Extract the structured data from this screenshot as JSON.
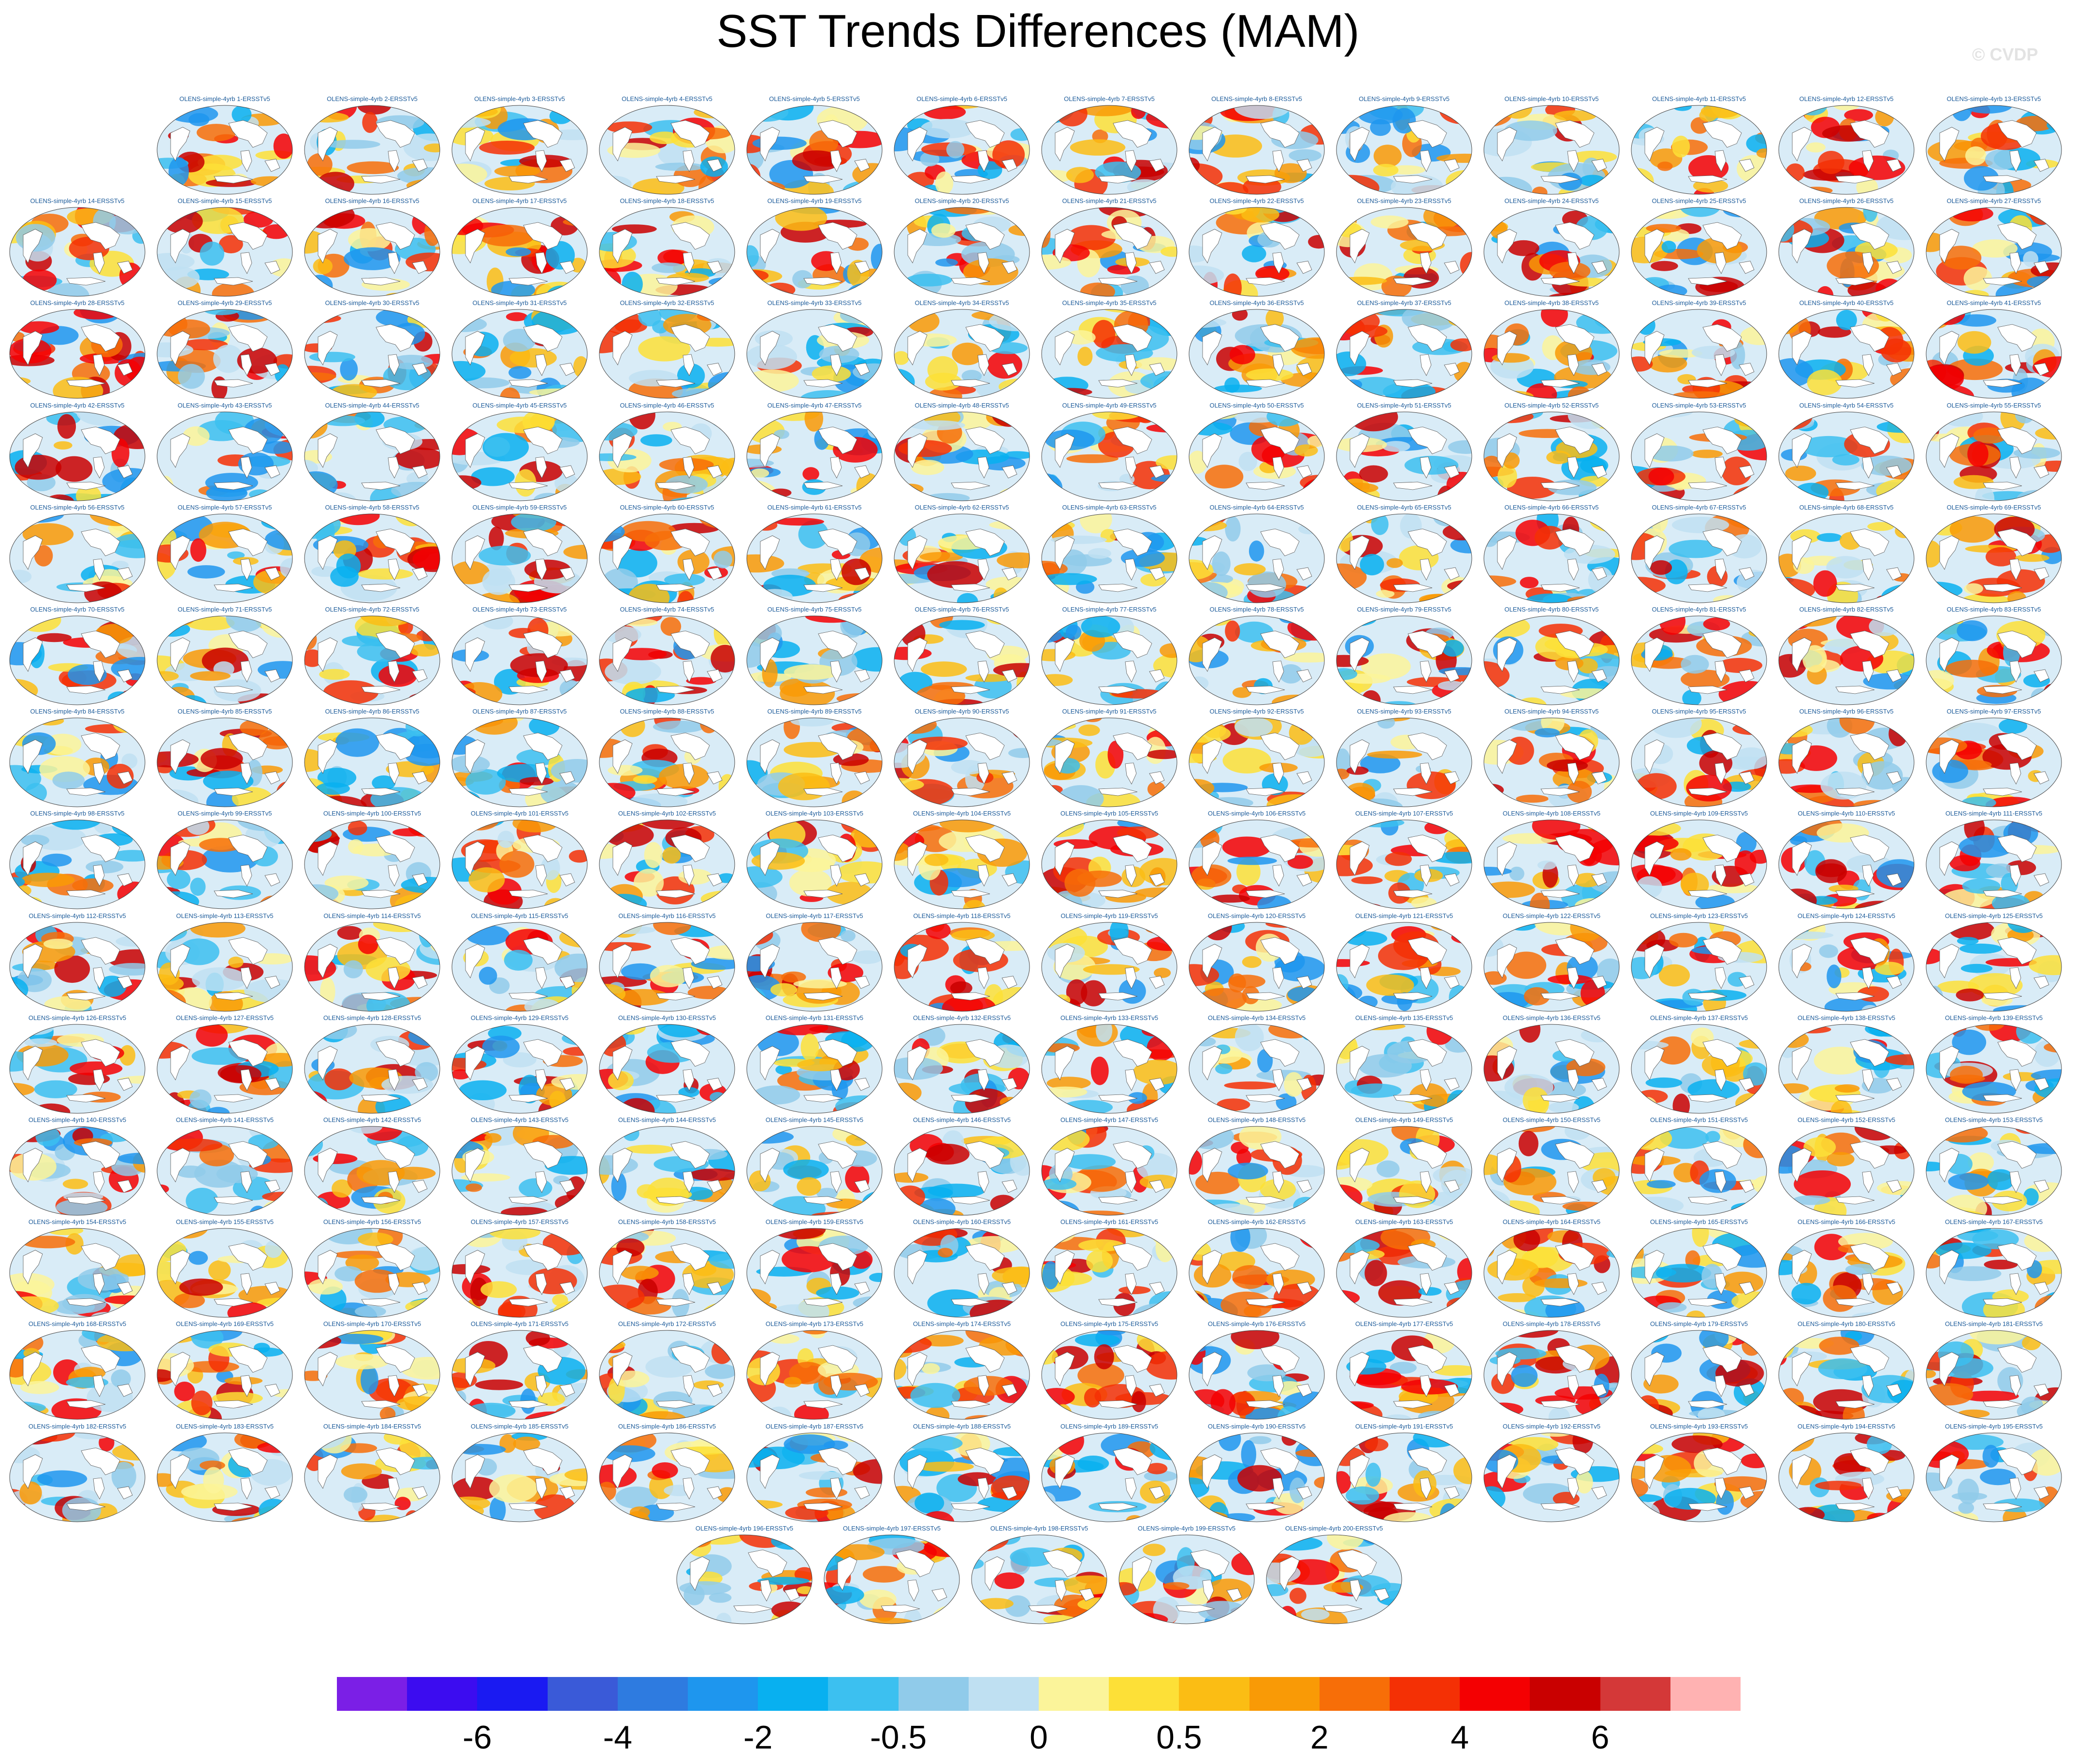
{
  "title": "SST Trends Differences (MAM)",
  "copyright": "© CVDP",
  "chart_data": {
    "type": "heatmap",
    "title": "SST Trends Differences (MAM)",
    "panel_label_prefix": "OLENS-simple-4yrb",
    "panel_label_suffix": "ERSSTv5",
    "panel_count": 200,
    "colorbar": {
      "colors": [
        "#7b1fe6",
        "#3c0cf0",
        "#1a1af2",
        "#3a5ad8",
        "#2e7be0",
        "#1e96ee",
        "#08b0f0",
        "#3cc0f0",
        "#90cbea",
        "#bfe0f2",
        "#fbf49a",
        "#fde037",
        "#fbbd14",
        "#f99a06",
        "#f76e08",
        "#f43005",
        "#f40002",
        "#c90000",
        "#d43838",
        "#ffb2b2"
      ],
      "tick_labels": [
        "-6",
        "-4",
        "-2",
        "-0.5",
        "0",
        "0.5",
        "2",
        "4",
        "6"
      ]
    }
  }
}
